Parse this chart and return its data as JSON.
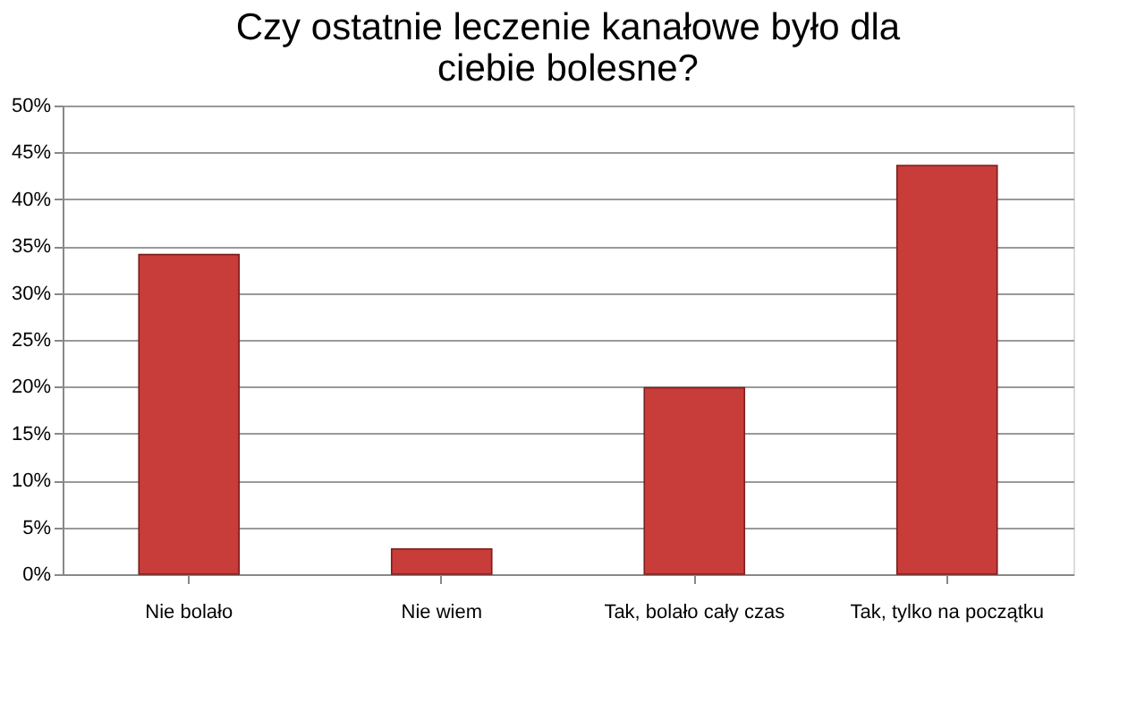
{
  "chart_data": {
    "type": "bar",
    "title": "Czy ostatnie leczenie kanałowe było dla ciebie bolesne?",
    "categories": [
      "Nie bolało",
      "Nie wiem",
      "Tak, bolało cały czas",
      "Tak, tylko na początku"
    ],
    "values": [
      34.1,
      2.7,
      19.9,
      43.6
    ],
    "color": "#c83c3a",
    "ylim": [
      0,
      50
    ],
    "yticks": [
      {
        "value": 0,
        "label": "0%"
      },
      {
        "value": 5,
        "label": "5%"
      },
      {
        "value": 10,
        "label": "10%"
      },
      {
        "value": 15,
        "label": "15%"
      },
      {
        "value": 20,
        "label": "20%"
      },
      {
        "value": 25,
        "label": "25%"
      },
      {
        "value": 30,
        "label": "30%"
      },
      {
        "value": 35,
        "label": "35%"
      },
      {
        "value": 40,
        "label": "40%"
      },
      {
        "value": 45,
        "label": "45%"
      },
      {
        "value": 50,
        "label": "50%"
      }
    ],
    "grid": "y"
  }
}
